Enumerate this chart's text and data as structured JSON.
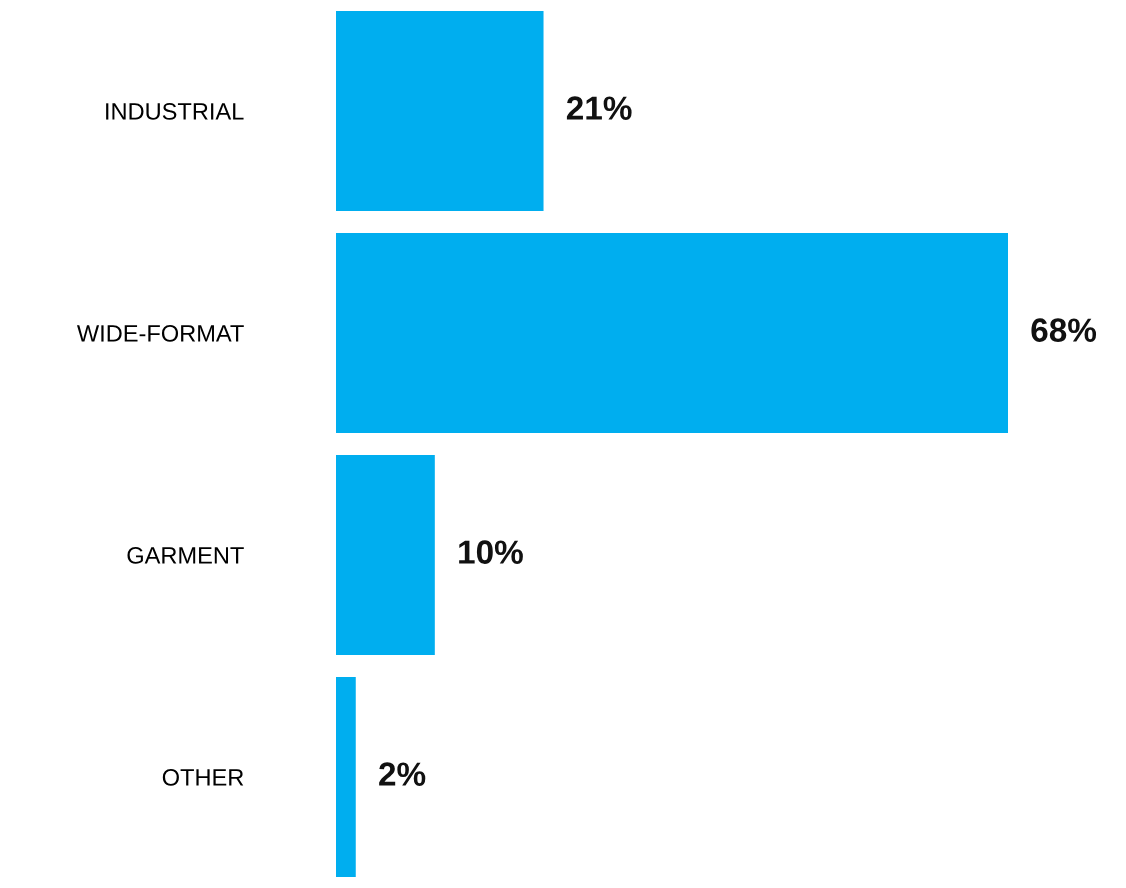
{
  "chart_data": {
    "type": "bar",
    "orientation": "horizontal",
    "categories": [
      "INDUSTRIAL",
      "WIDE-FORMAT",
      "GARMENT",
      "OTHER"
    ],
    "values": [
      21,
      68,
      10,
      2
    ],
    "value_labels": [
      "21%",
      "68%",
      "10%",
      "2%"
    ],
    "color": "#00aeef"
  }
}
